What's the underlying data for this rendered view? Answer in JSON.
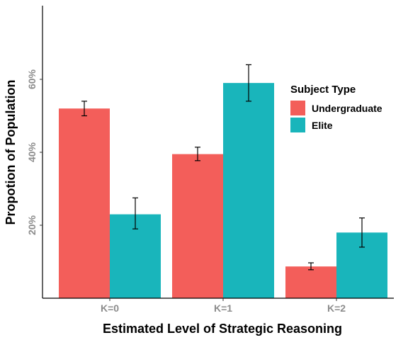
{
  "chart_data": {
    "type": "bar",
    "categories": [
      "K=0",
      "K=1",
      "K=2"
    ],
    "series": [
      {
        "name": "Undergraduate",
        "values": [
          52,
          39.5,
          8.7
        ],
        "err_low": [
          50,
          37.7,
          7.8
        ],
        "err_high": [
          54,
          41.4,
          9.7
        ],
        "color": "#f35e5a"
      },
      {
        "name": "Elite",
        "values": [
          23,
          59,
          18
        ],
        "err_low": [
          19,
          54,
          14
        ],
        "err_high": [
          27.5,
          64,
          22
        ],
        "color": "#19b5bb"
      }
    ],
    "xlabel": "Estimated Level of Strategic Reasoning",
    "ylabel": "Propotion of Population",
    "ylim": [
      0,
      80
    ],
    "yticks": [
      20,
      40,
      60
    ],
    "ytick_labels": [
      "20%",
      "40%",
      "60%"
    ],
    "legend": {
      "title": "Subject Type",
      "position": "right-inside"
    },
    "grid": false
  }
}
